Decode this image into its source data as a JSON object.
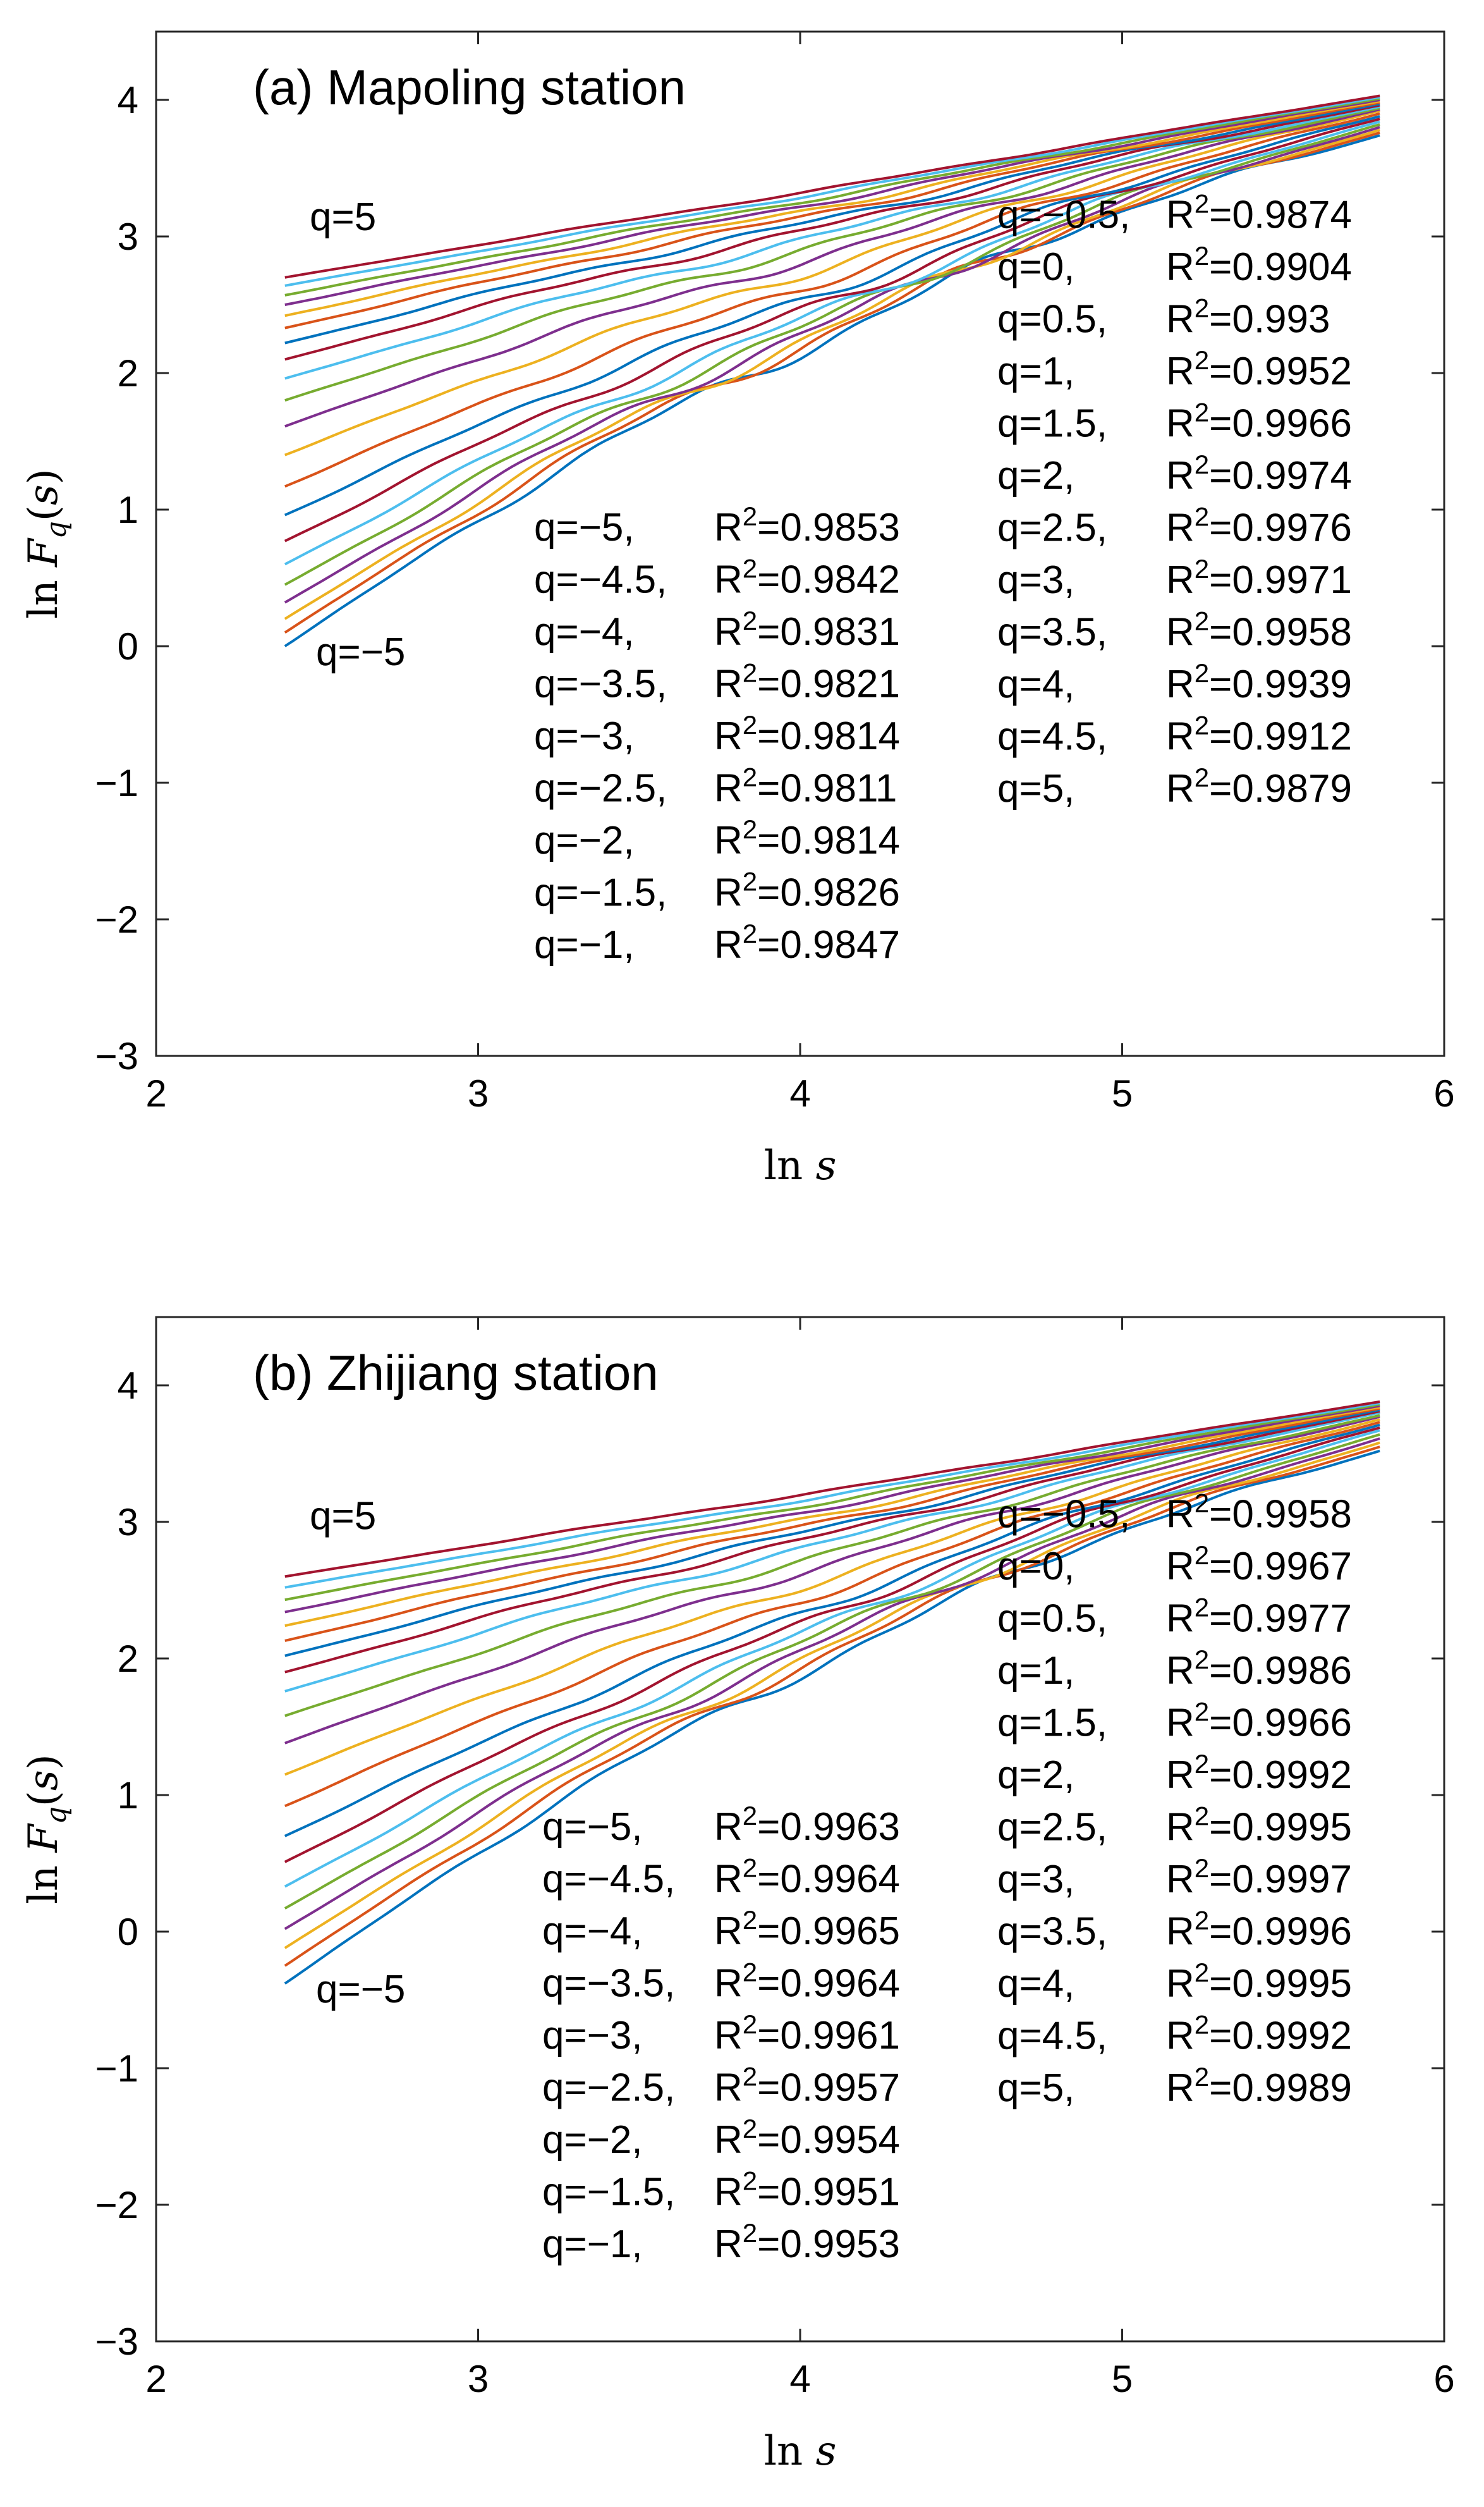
{
  "figure_colors": [
    "#0072BD",
    "#D95319",
    "#EDB120",
    "#7E2F8E",
    "#77AC30",
    "#4DBEEE",
    "#A2142F"
  ],
  "chart_data": [
    {
      "type": "line",
      "title": "(a) Mapoling station",
      "xlabel": "ln s",
      "ylabel": "ln F_q(s)",
      "xlim": [
        2,
        6
      ],
      "ylim": [
        -3,
        4.5
      ],
      "xticks": [
        "2",
        "3",
        "4",
        "5",
        "6"
      ],
      "yticks": [
        "-3",
        "-2",
        "-1",
        "0",
        "1",
        "2",
        "3",
        "4"
      ],
      "ytick_values": [
        -3,
        -2,
        -1,
        0,
        1,
        2,
        3,
        4
      ],
      "xtick_values": [
        2,
        3,
        4,
        5,
        6
      ],
      "x_range": [
        2.4,
        5.8
      ],
      "q_values": [
        -5,
        -4.5,
        -4,
        -3.5,
        -3,
        -2.5,
        -2,
        -1.5,
        -1,
        -0.5,
        0,
        0.5,
        1,
        1.5,
        2,
        2.5,
        3,
        3.5,
        4,
        4.5,
        5
      ],
      "series_y_start": [
        0.0,
        0.1,
        0.2,
        0.32,
        0.45,
        0.6,
        0.77,
        0.96,
        1.17,
        1.4,
        1.61,
        1.8,
        1.96,
        2.1,
        2.22,
        2.33,
        2.42,
        2.5,
        2.57,
        2.64,
        2.7
      ],
      "series_y_end": [
        3.74,
        3.76,
        3.78,
        3.8,
        3.82,
        3.84,
        3.86,
        3.88,
        3.9,
        3.92,
        3.93,
        3.94,
        3.95,
        3.96,
        3.97,
        3.98,
        3.99,
        4.0,
        4.01,
        4.02,
        4.03
      ],
      "waviness": 0.08,
      "q_top_label": "q=5",
      "q_bottom_label": "q=−5",
      "r2_left": [
        {
          "q": "q=−5,",
          "r2": "=0.9853"
        },
        {
          "q": "q=−4.5,",
          "r2": "=0.9842"
        },
        {
          "q": "q=−4,",
          "r2": "=0.9831"
        },
        {
          "q": "q=−3.5,",
          "r2": "=0.9821"
        },
        {
          "q": "q=−3,",
          "r2": "=0.9814"
        },
        {
          "q": "q=−2.5,",
          "r2": "=0.9811"
        },
        {
          "q": "q=−2,",
          "r2": "=0.9814"
        },
        {
          "q": "q=−1.5,",
          "r2": "=0.9826"
        },
        {
          "q": "q=−1,",
          "r2": "=0.9847"
        }
      ],
      "r2_right": [
        {
          "q": "q=−0.5,",
          "r2": "=0.9874"
        },
        {
          "q": "q=0,",
          "r2": "=0.9904"
        },
        {
          "q": "q=0.5,",
          "r2": "=0.993"
        },
        {
          "q": "q=1,",
          "r2": "=0.9952"
        },
        {
          "q": "q=1.5,",
          "r2": "=0.9966"
        },
        {
          "q": "q=2,",
          "r2": "=0.9974"
        },
        {
          "q": "q=2.5,",
          "r2": "=0.9976"
        },
        {
          "q": "q=3,",
          "r2": "=0.9971"
        },
        {
          "q": "q=3.5,",
          "r2": "=0.9958"
        },
        {
          "q": "q=4,",
          "r2": "=0.9939"
        },
        {
          "q": "q=4.5,",
          "r2": "=0.9912"
        },
        {
          "q": "q=5,",
          "r2": "=0.9879"
        }
      ]
    },
    {
      "type": "line",
      "title": "(b) Zhijiang station",
      "xlabel": "ln s",
      "ylabel": "ln F_q(s)",
      "xlim": [
        2,
        6
      ],
      "ylim": [
        -3,
        4.5
      ],
      "xticks": [
        "2",
        "3",
        "4",
        "5",
        "6"
      ],
      "yticks": [
        "-3",
        "-2",
        "-1",
        "0",
        "1",
        "2",
        "3",
        "4"
      ],
      "ytick_values": [
        -3,
        -2,
        -1,
        0,
        1,
        2,
        3,
        4
      ],
      "xtick_values": [
        2,
        3,
        4,
        5,
        6
      ],
      "x_range": [
        2.4,
        5.8
      ],
      "q_values": [
        -5,
        -4.5,
        -4,
        -3.5,
        -3,
        -2.5,
        -2,
        -1.5,
        -1,
        -0.5,
        0,
        0.5,
        1,
        1.5,
        2,
        2.5,
        3,
        3.5,
        4,
        4.5,
        5
      ],
      "series_y_start": [
        -0.38,
        -0.25,
        -0.12,
        0.02,
        0.17,
        0.33,
        0.51,
        0.7,
        0.92,
        1.15,
        1.38,
        1.58,
        1.76,
        1.9,
        2.02,
        2.13,
        2.24,
        2.34,
        2.43,
        2.52,
        2.6
      ],
      "series_y_end": [
        3.52,
        3.55,
        3.58,
        3.61,
        3.64,
        3.67,
        3.69,
        3.71,
        3.73,
        3.75,
        3.77,
        3.78,
        3.8,
        3.81,
        3.82,
        3.83,
        3.84,
        3.85,
        3.86,
        3.87,
        3.88
      ],
      "waviness": 0.06,
      "q_top_label": "q=5",
      "q_bottom_label": "q=−5",
      "r2_left": [
        {
          "q": "q=−5,",
          "r2": "=0.9963"
        },
        {
          "q": "q=−4.5,",
          "r2": "=0.9964"
        },
        {
          "q": "q=−4,",
          "r2": "=0.9965"
        },
        {
          "q": "q=−3.5,",
          "r2": "=0.9964"
        },
        {
          "q": "q=−3,",
          "r2": "=0.9961"
        },
        {
          "q": "q=−2.5,",
          "r2": "=0.9957"
        },
        {
          "q": "q=−2,",
          "r2": "=0.9954"
        },
        {
          "q": "q=−1.5,",
          "r2": "=0.9951"
        },
        {
          "q": "q=−1,",
          "r2": "=0.9953"
        }
      ],
      "r2_right": [
        {
          "q": "q=−0.5,",
          "r2": "=0.9958"
        },
        {
          "q": "q=0,",
          "r2": "=0.9967"
        },
        {
          "q": "q=0.5,",
          "r2": "=0.9977"
        },
        {
          "q": "q=1,",
          "r2": "=0.9986"
        },
        {
          "q": "q=1.5,",
          "r2": "=0.9966"
        },
        {
          "q": "q=2,",
          "r2": "=0.9992"
        },
        {
          "q": "q=2.5,",
          "r2": "=0.9995"
        },
        {
          "q": "q=3,",
          "r2": "=0.9997"
        },
        {
          "q": "q=3.5,",
          "r2": "=0.9996"
        },
        {
          "q": "q=4,",
          "r2": "=0.9995"
        },
        {
          "q": "q=4.5,",
          "r2": "=0.9992"
        },
        {
          "q": "q=5,",
          "r2": "=0.9989"
        }
      ]
    }
  ]
}
